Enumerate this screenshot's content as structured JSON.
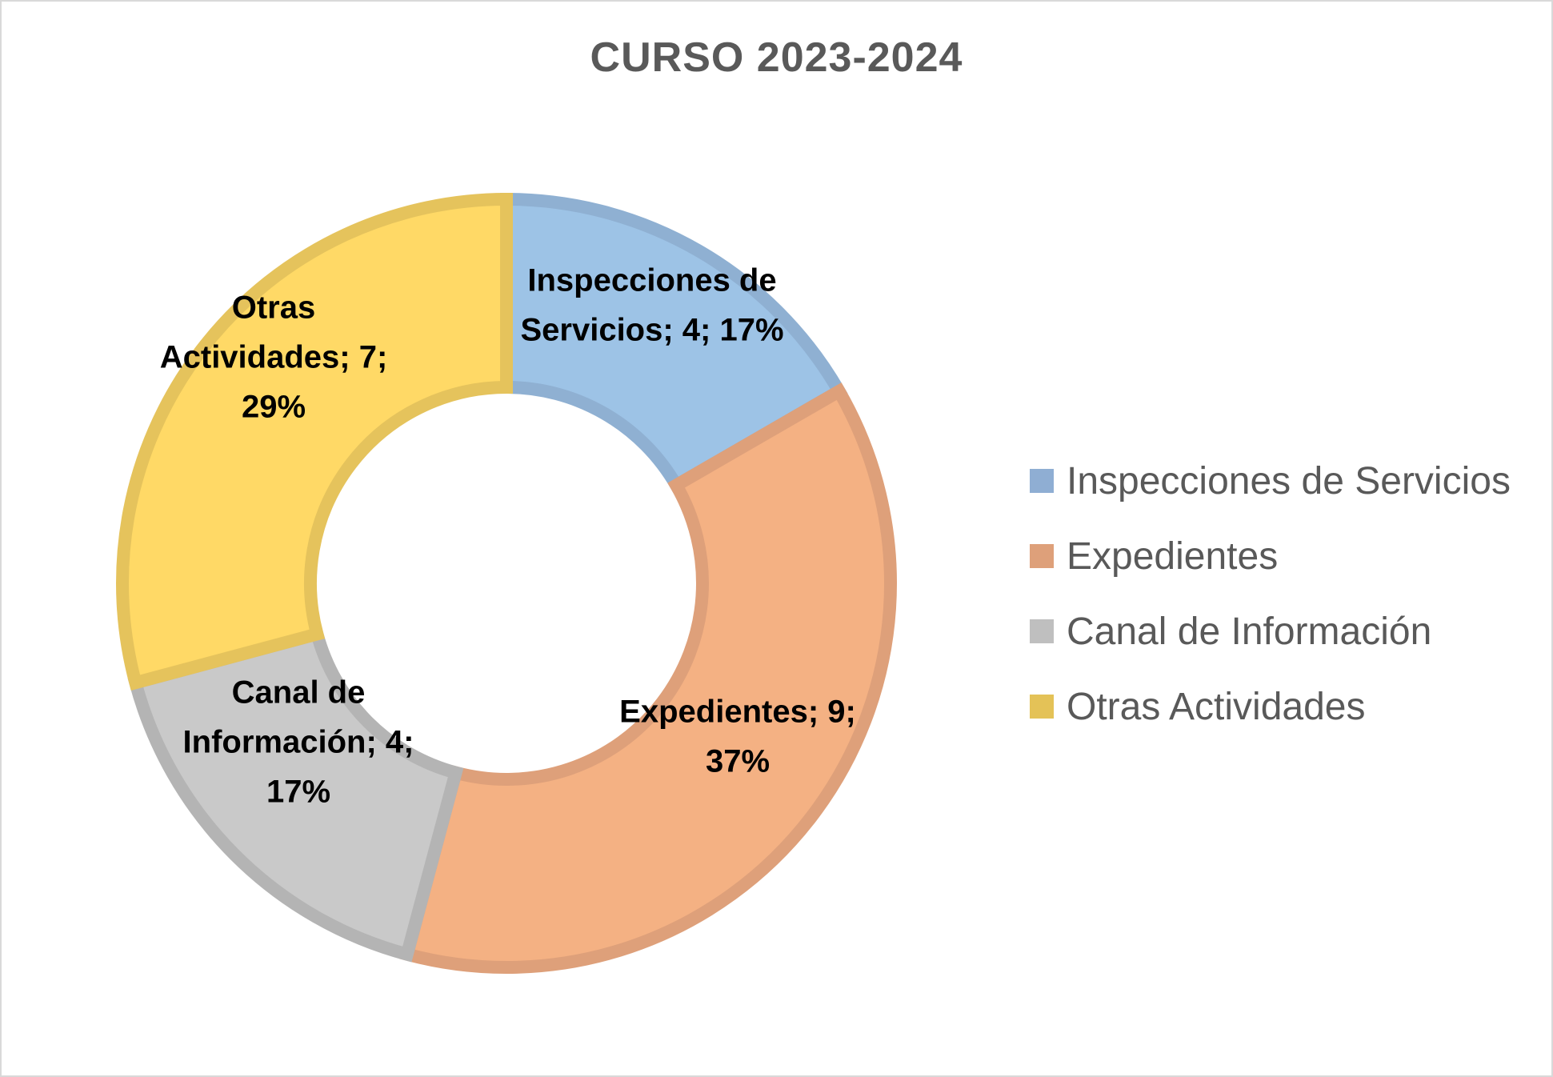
{
  "chart_data": {
    "type": "pie",
    "variant": "donut",
    "title": "CURSO 2023-2024",
    "categories": [
      "Inspecciones de Servicios",
      "Expedientes",
      "Canal de Información",
      "Otras Actividades"
    ],
    "values": [
      4,
      9,
      4,
      7
    ],
    "percentages": [
      "17%",
      "37%",
      "17%",
      "29%"
    ],
    "data_labels": [
      [
        "Inspecciones de",
        "Servicios; 4; 17%"
      ],
      [
        "Expedientes; 9;",
        "37%"
      ],
      [
        "Canal de",
        "Información; 4;",
        "17%"
      ],
      [
        "Otras",
        "Actividades; 7;",
        "29%"
      ]
    ],
    "colors": {
      "fill": [
        "#9dc3e6",
        "#f4b183",
        "#c9c9c9",
        "#ffd966"
      ],
      "stroke": [
        "#8fb0d2",
        "#dea07a",
        "#b4b4b4",
        "#e5c35c"
      ],
      "legend_swatch": [
        "#8faed3",
        "#dea07a",
        "#bfbfbf",
        "#e4c257"
      ]
    },
    "legend_position": "right"
  }
}
